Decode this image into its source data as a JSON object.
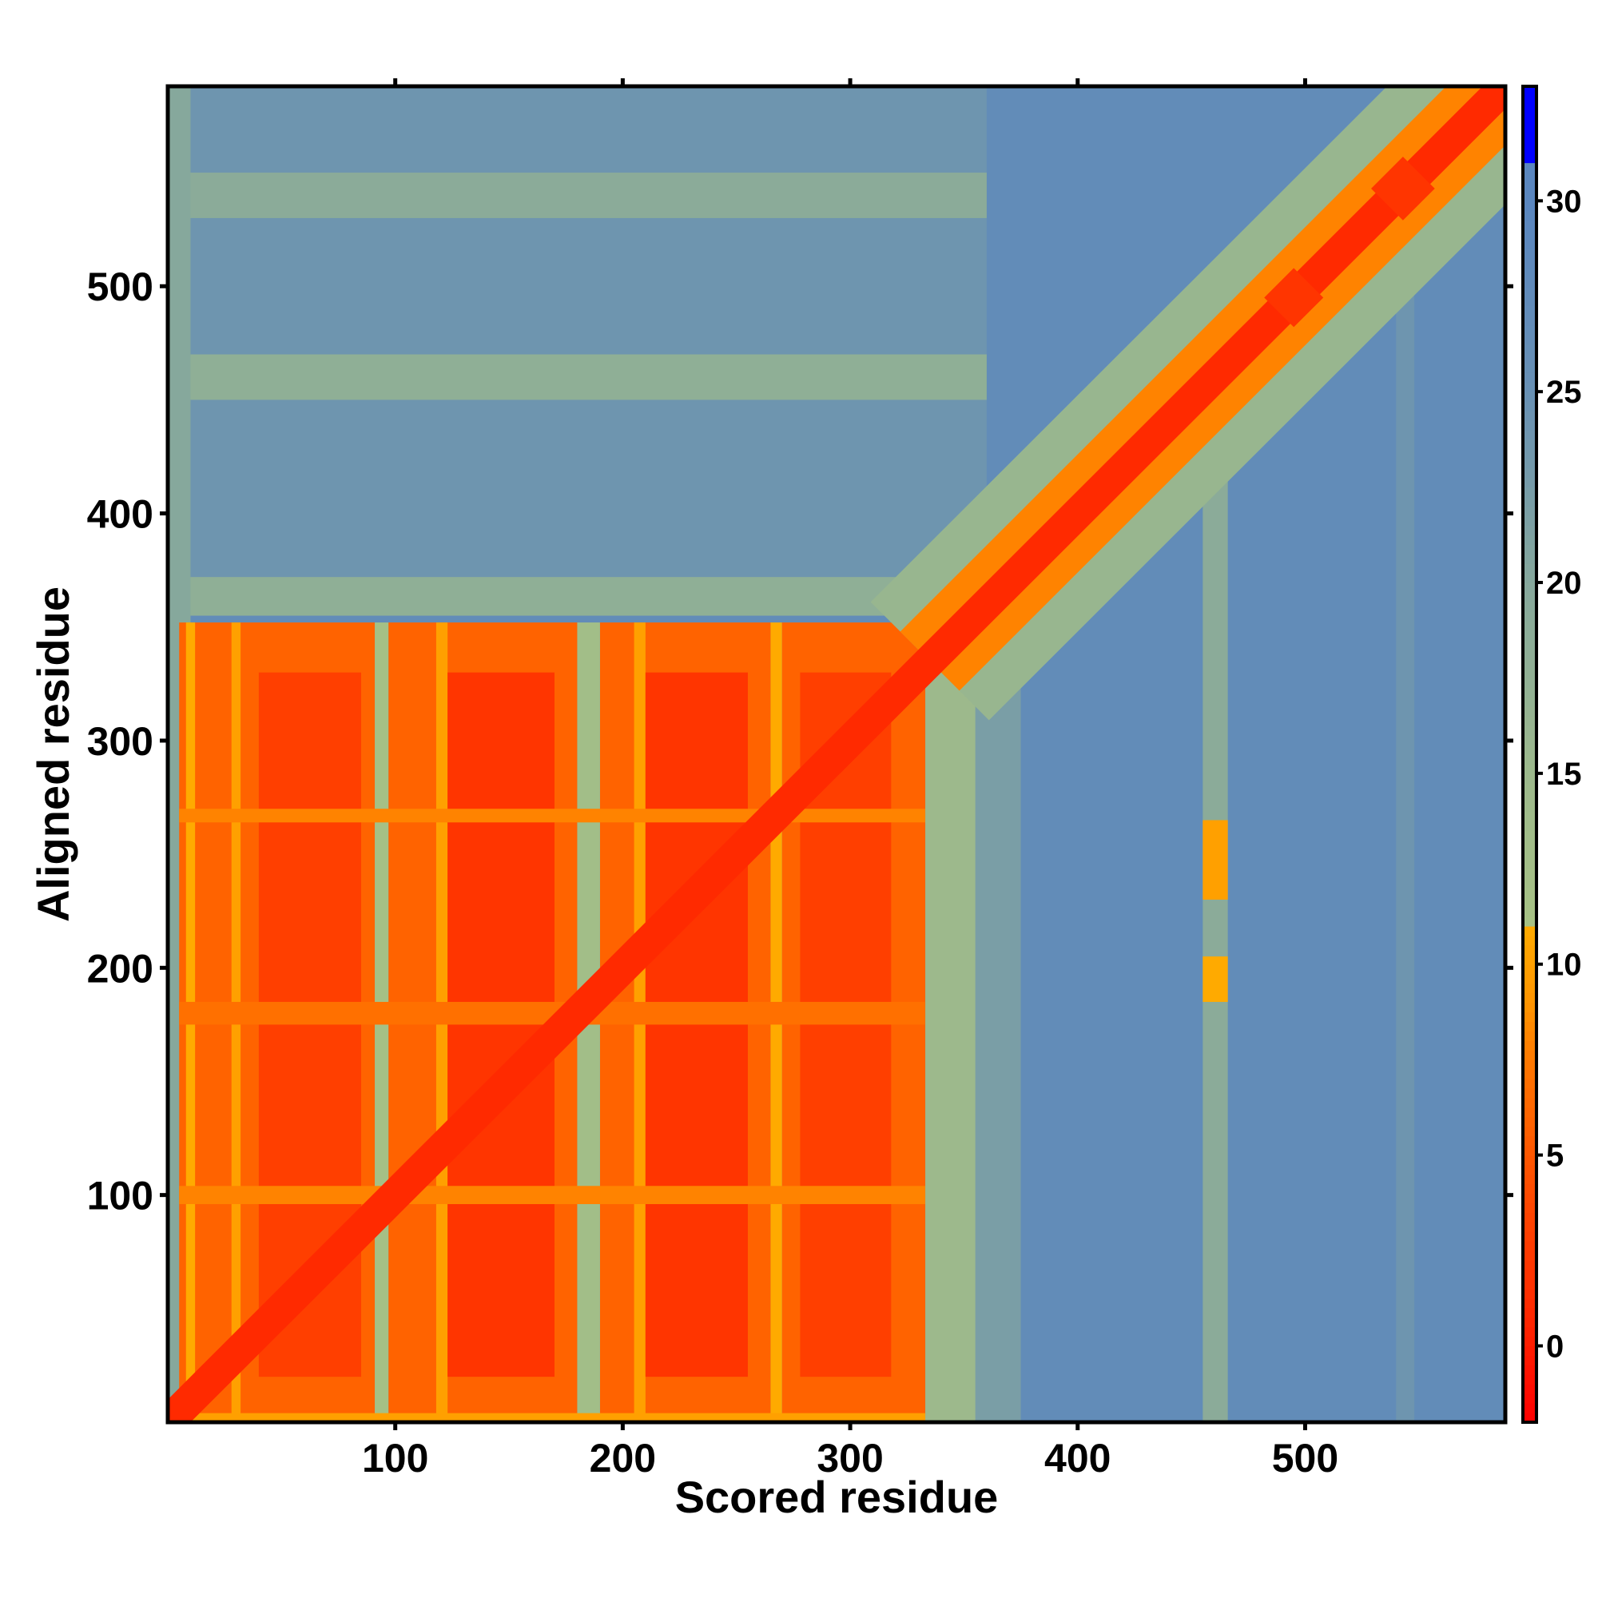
{
  "chart_data": {
    "type": "heatmap",
    "title": "",
    "xlabel": "Scored residue",
    "ylabel": "Aligned residue",
    "xlim": [
      0,
      588
    ],
    "ylim": [
      0,
      588
    ],
    "xticks": [
      100,
      200,
      300,
      400,
      500
    ],
    "yticks": [
      100,
      200,
      300,
      400,
      500
    ],
    "colorbar": {
      "range": [
        -2,
        33
      ],
      "ticks": [
        0,
        5,
        10,
        15,
        20,
        25,
        30
      ],
      "stops": [
        {
          "v": -2,
          "c": "#ff0000"
        },
        {
          "v": 1,
          "c": "#ff2a00"
        },
        {
          "v": 4,
          "c": "#ff4a00"
        },
        {
          "v": 7,
          "c": "#ff7000"
        },
        {
          "v": 9,
          "c": "#ff9500"
        },
        {
          "v": 11,
          "c": "#ffaa00"
        },
        {
          "v": 11.01,
          "c": "#a7c284"
        },
        {
          "v": 15,
          "c": "#9db98c"
        },
        {
          "v": 20,
          "c": "#86a89c"
        },
        {
          "v": 25,
          "c": "#6890b4"
        },
        {
          "v": 30,
          "c": "#5a86bf"
        },
        {
          "v": 31,
          "c": "#5a86bf"
        },
        {
          "v": 31.01,
          "c": "#0000ff"
        },
        {
          "v": 33,
          "c": "#0000ff"
        }
      ]
    },
    "background_value": 27,
    "regions": [
      {
        "x": [
          0,
          360
        ],
        "y": [
          355,
          588
        ],
        "value": 24
      },
      {
        "x": [
          0,
          360
        ],
        "y": [
          530,
          550
        ],
        "value": 19
      },
      {
        "x": [
          0,
          360
        ],
        "y": [
          450,
          470
        ],
        "value": 18
      },
      {
        "x": [
          0,
          360
        ],
        "y": [
          355,
          372
        ],
        "value": 18
      },
      {
        "x": [
          0,
          10
        ],
        "y": [
          0,
          588
        ],
        "value": 20
      },
      {
        "x": [
          455,
          466
        ],
        "y": [
          0,
          420
        ],
        "value": 19
      },
      {
        "x": [
          540,
          548
        ],
        "y": [
          0,
          500
        ],
        "value": 24
      },
      {
        "x": [
          333,
          360
        ],
        "y": [
          0,
          355
        ],
        "value": 15
      },
      {
        "x": [
          355,
          375
        ],
        "y": [
          0,
          355
        ],
        "value": 22
      },
      {
        "x": [
          5,
          91
        ],
        "y": [
          0,
          352
        ],
        "value": 6
      },
      {
        "x": [
          97,
          180
        ],
        "y": [
          0,
          352
        ],
        "value": 6
      },
      {
        "x": [
          190,
          265
        ],
        "y": [
          0,
          352
        ],
        "value": 6
      },
      {
        "x": [
          270,
          333
        ],
        "y": [
          0,
          352
        ],
        "value": 6
      },
      {
        "x": [
          91,
          97
        ],
        "y": [
          0,
          352
        ],
        "value": 12
      },
      {
        "x": [
          180,
          190
        ],
        "y": [
          0,
          352
        ],
        "value": 13
      },
      {
        "x": [
          265,
          270
        ],
        "y": [
          0,
          352
        ],
        "value": 11
      },
      {
        "x": [
          8,
          12
        ],
        "y": [
          0,
          352
        ],
        "value": 11
      },
      {
        "x": [
          28,
          32
        ],
        "y": [
          0,
          352
        ],
        "value": 10
      },
      {
        "x": [
          118,
          123
        ],
        "y": [
          0,
          352
        ],
        "value": 10
      },
      {
        "x": [
          205,
          210
        ],
        "y": [
          0,
          352
        ],
        "value": 10
      },
      {
        "x": [
          40,
          85
        ],
        "y": [
          20,
          330
        ],
        "value": 3
      },
      {
        "x": [
          123,
          170
        ],
        "y": [
          20,
          330
        ],
        "value": 2
      },
      {
        "x": [
          210,
          255
        ],
        "y": [
          20,
          330
        ],
        "value": 2
      },
      {
        "x": [
          278,
          318
        ],
        "y": [
          20,
          330
        ],
        "value": 3
      },
      {
        "x": [
          5,
          333
        ],
        "y": [
          175,
          185
        ],
        "value": 7
      },
      {
        "x": [
          5,
          333
        ],
        "y": [
          96,
          104
        ],
        "value": 8
      },
      {
        "x": [
          5,
          333
        ],
        "y": [
          264,
          270
        ],
        "value": 8
      },
      {
        "x": [
          5,
          333
        ],
        "y": [
          0,
          4
        ],
        "value": 10
      },
      {
        "x": [
          455,
          466
        ],
        "y": [
          230,
          265
        ],
        "value": 10
      },
      {
        "x": [
          455,
          466
        ],
        "y": [
          185,
          205
        ],
        "value": 11
      }
    ],
    "diagonal_bands": [
      {
        "from": 335,
        "to": 588,
        "halfwidth": 26,
        "value": 16
      },
      {
        "from": 335,
        "to": 588,
        "halfwidth": 13,
        "value": 8
      },
      {
        "from": 0,
        "to": 588,
        "halfwidth": 5,
        "value": 1
      }
    ],
    "diagonal_bulges": [
      {
        "center": 495,
        "radius": 13,
        "value": 2
      },
      {
        "center": 543,
        "radius": 14,
        "value": 2
      }
    ]
  }
}
